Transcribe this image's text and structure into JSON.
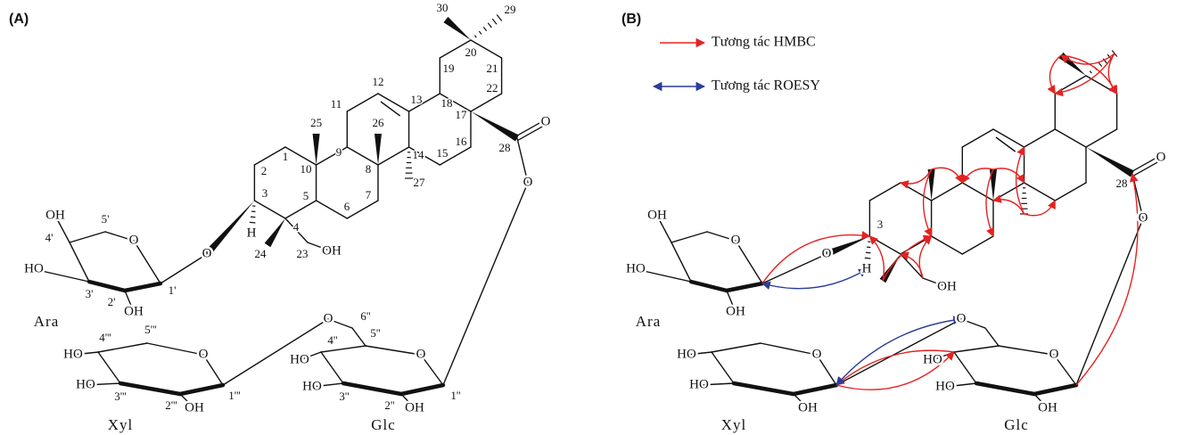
{
  "panel_a": {
    "label": "(A)",
    "atom_numbers": [
      "30",
      "29",
      "20",
      "19",
      "21",
      "22",
      "12",
      "13",
      "11",
      "18",
      "17",
      "26",
      "25",
      "16",
      "28",
      "14",
      "15",
      "9",
      "8",
      "10",
      "1",
      "2",
      "7",
      "3",
      "5",
      "27",
      "4",
      "6",
      "24",
      "23",
      "4'",
      "5'",
      "3'",
      "2'",
      "1'",
      "6''",
      "4''",
      "5''",
      "3''",
      "2''",
      "1''",
      "4'''",
      "5'''",
      "3'''",
      "2'''",
      "1'''"
    ],
    "groups": [
      "OH",
      "HO",
      "O",
      "OH",
      "O",
      "H",
      "OH",
      "O",
      "O",
      "O",
      "HO",
      "HO",
      "O",
      "OH",
      "HO",
      "HO",
      "O",
      "OH"
    ],
    "sugar_names": [
      "Ara",
      "Xyl",
      "Glc"
    ]
  },
  "panel_b": {
    "label": "(B)",
    "legend": [
      "Tương tác HMBC",
      "Tương tác ROESY"
    ],
    "atom_numbers": [
      "3",
      "28"
    ],
    "groups": [
      "OH",
      "HO",
      "O",
      "OH",
      "O",
      "H",
      "OH",
      "O",
      "O",
      "O",
      "HO",
      "HO",
      "O",
      "OH",
      "HO",
      "HO",
      "O",
      "OH"
    ],
    "sugar_names": [
      "Ara",
      "Xyl",
      "Glc"
    ]
  }
}
